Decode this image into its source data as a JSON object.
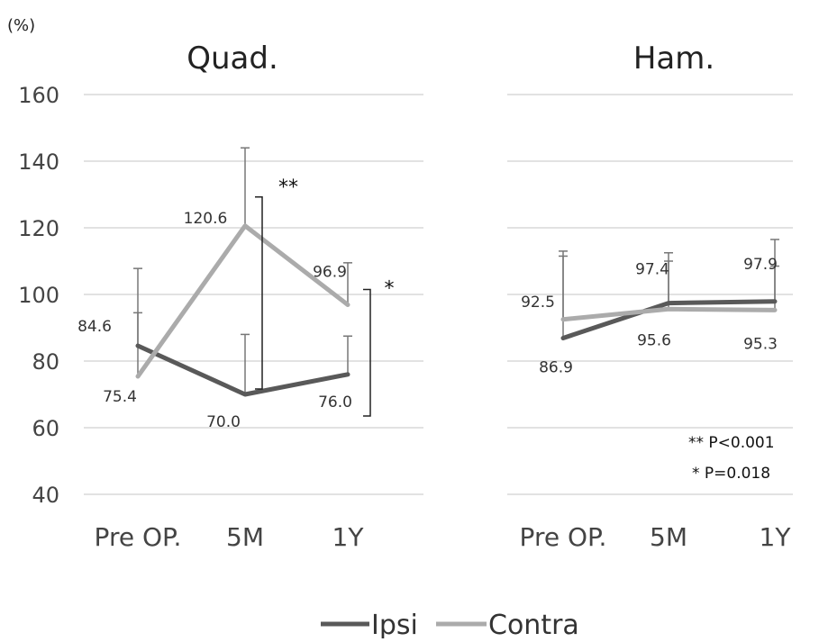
{
  "chart_data": {
    "type": "line",
    "unit_label": "(%)",
    "y_ticks": [
      "160",
      "140",
      "120",
      "100",
      "80",
      "60",
      "40"
    ],
    "ylim": [
      40,
      160
    ],
    "grid": true,
    "categories": [
      "Pre OP.",
      "5M",
      "1Y"
    ],
    "legend_position": "bottom-center",
    "colors": {
      "Ipsi": "#595959",
      "Contra": "#ababab",
      "errorbar": "#777777",
      "grid": "#d9d9d9"
    },
    "panels": [
      {
        "title": "Quad.",
        "series": [
          {
            "name": "Ipsi",
            "values": [
              84.6,
              70.0,
              76.0
            ],
            "labels": [
              "84.6",
              "70.0",
              "76.0"
            ],
            "error_upper": [
              94.5,
              88.0,
              87.5
            ]
          },
          {
            "name": "Contra",
            "values": [
              75.4,
              120.6,
              96.9
            ],
            "labels": [
              "75.4",
              "120.6",
              "96.9"
            ],
            "error_upper": [
              107.8,
              144.0,
              109.5
            ]
          }
        ],
        "significance": [
          {
            "mark": "**",
            "between": [
              "Ipsi 5M",
              "Contra 5M"
            ]
          },
          {
            "mark": "*",
            "between": [
              "Ipsi 1Y",
              "Contra 1Y"
            ]
          }
        ]
      },
      {
        "title": "Ham.",
        "series": [
          {
            "name": "Ipsi",
            "values": [
              86.9,
              97.4,
              97.9
            ],
            "labels": [
              "86.9",
              "97.4",
              "97.9"
            ],
            "error_upper": [
              113.0,
              110.0,
              116.5
            ]
          },
          {
            "name": "Contra",
            "values": [
              92.5,
              95.6,
              95.3
            ],
            "labels": [
              "92.5",
              "95.6",
              "95.3"
            ],
            "error_upper": [
              111.5,
              112.5,
              108.5
            ]
          }
        ]
      }
    ],
    "annotations": [
      "** P<0.001",
      "*  P=0.018"
    ]
  }
}
